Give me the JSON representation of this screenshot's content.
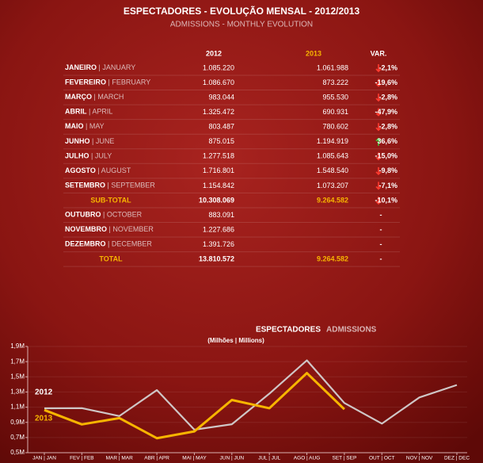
{
  "header": {
    "title": "ESPECTADORES - EVOLUÇÃO MENSAL - 2012/2013",
    "subtitle": "ADMISSIONS - MONTHLY EVOLUTION"
  },
  "table": {
    "columns": [
      "2012",
      "2013",
      "VAR."
    ],
    "rows": [
      [
        "JANEIRO | JANUARY",
        "1.085.220",
        "1.061.988",
        "-2,1%"
      ],
      [
        "FEVEREIRO | FEBRUARY",
        "1.086.670",
        "873.222",
        "-19,6%"
      ],
      [
        "MARÇO | MARCH",
        "983.044",
        "955.530",
        "-2,8%"
      ],
      [
        "ABRIL | APRIL",
        "1.325.472",
        "690.931",
        "-47,9%"
      ],
      [
        "MAIO | MAY",
        "803.487",
        "780.602",
        "-2,8%"
      ],
      [
        "JUNHO | JUNE",
        "875.015",
        "1.194.919",
        "36,6%"
      ],
      [
        "JULHO | JULY",
        "1.277.518",
        "1.085.643",
        "-15,0%"
      ],
      [
        "AGOSTO | AUGUST",
        "1.716.801",
        "1.548.540",
        "-9,8%"
      ],
      [
        "SETEMBRO | SEPTEMBER",
        "1.154.842",
        "1.073.207",
        "-7,1%"
      ],
      [
        "SUB-TOTAL",
        "10.308.069",
        "9.264.582",
        "-10,1%"
      ],
      [
        "OUTUBRO | OCTOBER",
        "883.091",
        null,
        "-"
      ],
      [
        "NOVEMBRO | NOVEMBER",
        "1.227.686",
        null,
        "-"
      ],
      [
        "DEZEMBRO | DECEMBER",
        "1.391.726",
        null,
        "-"
      ],
      [
        "TOTAL",
        "13.810.572",
        "9.264.582",
        "-"
      ]
    ]
  },
  "chart_data": {
    "type": "line",
    "title": "ESPECTADORES",
    "title_en": "ADMISSIONS",
    "subtitle": "(Milhões | Millions)",
    "categories": [
      "JAN | JAN",
      "FEV | FEB",
      "MAR | MAR",
      "ABR | APR",
      "MAI | MAY",
      "JUN | JUN",
      "JUL | JUL",
      "AGO | AUG",
      "SET | SEP",
      "OUT | OCT",
      "NOV | NOV",
      "DEZ | DEC"
    ],
    "series": [
      {
        "name": "2012",
        "color": "#cfc6c6",
        "values": [
          1.085,
          1.087,
          0.983,
          1.325,
          0.803,
          0.875,
          1.278,
          1.717,
          1.155,
          0.883,
          1.228,
          1.392
        ]
      },
      {
        "name": "2013",
        "color": "#f7b500",
        "values": [
          1.062,
          0.873,
          0.956,
          0.691,
          0.781,
          1.195,
          1.086,
          1.549,
          1.073,
          null,
          null,
          null
        ]
      }
    ],
    "ylim": [
      0.5,
      1.9
    ],
    "yticks": [
      {
        "value": 0.5,
        "label": "0,5M"
      },
      {
        "value": 0.7,
        "label": "0,7M"
      },
      {
        "value": 0.9,
        "label": "0,9M"
      },
      {
        "value": 1.1,
        "label": "1,1M"
      },
      {
        "value": 1.3,
        "label": "1,3M"
      },
      {
        "value": 1.5,
        "label": "1,5M"
      },
      {
        "value": 1.7,
        "label": "1,7M"
      },
      {
        "value": 1.9,
        "label": "1,9M"
      }
    ],
    "grid": true
  }
}
